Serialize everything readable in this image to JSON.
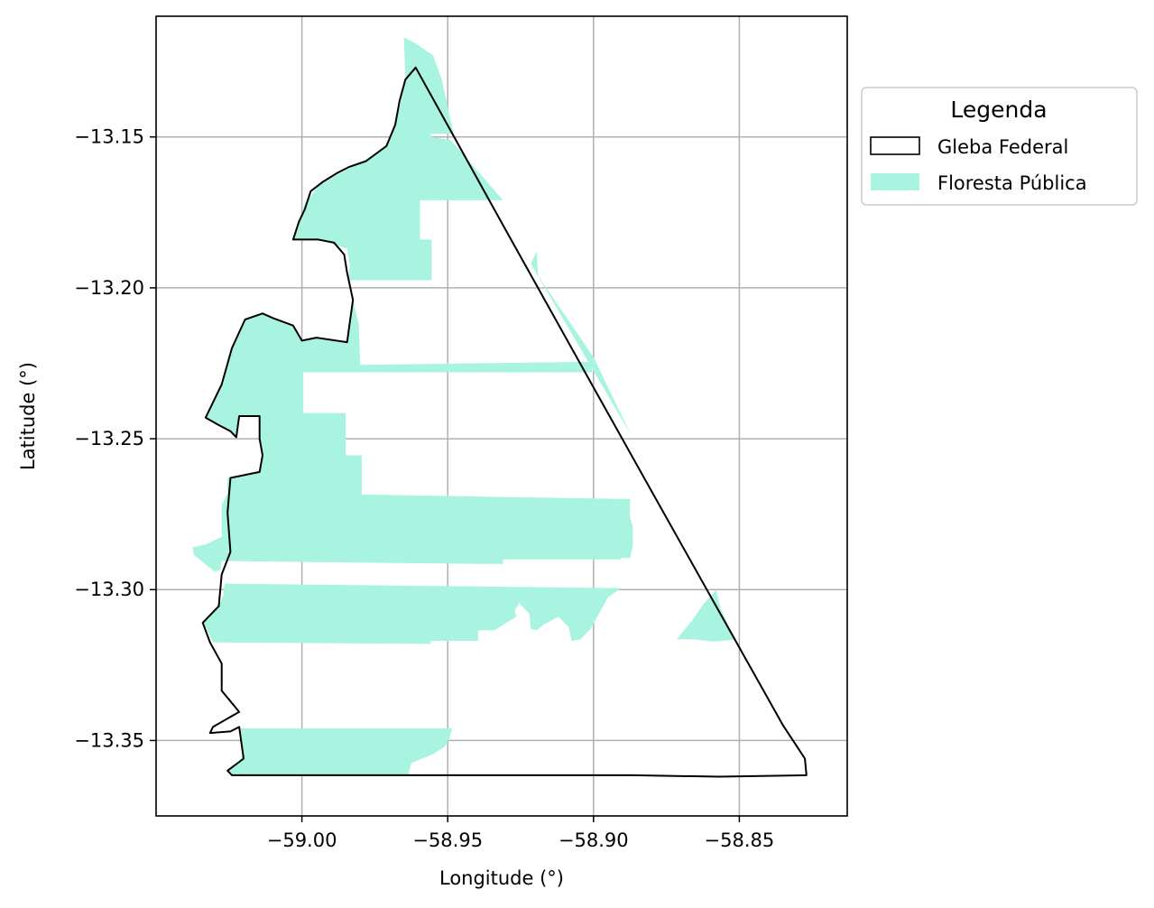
{
  "chart_data": {
    "type": "map",
    "xlabel": "Longitude (°)",
    "ylabel": "Latitude (°)",
    "xlim": [
      -59.05,
      -58.813
    ],
    "ylim": [
      -13.375,
      -13.11
    ],
    "x_ticks": [
      -59.0,
      -58.95,
      -58.9,
      -58.85
    ],
    "x_tick_labels": [
      "−59.00",
      "−58.95",
      "−58.90",
      "−58.85"
    ],
    "y_ticks": [
      -13.15,
      -13.2,
      -13.25,
      -13.3,
      -13.35
    ],
    "y_tick_labels": [
      "−13.15",
      "−13.20",
      "−13.25",
      "−13.30",
      "−13.35"
    ],
    "grid": true,
    "legend": {
      "title": "Legenda",
      "placement": "outside-upper-right",
      "entries": [
        {
          "label": "Gleba Federal",
          "style": "outline",
          "color": "#000000"
        },
        {
          "label": "Floresta Pública",
          "style": "fill",
          "color": "#a8f4e0"
        }
      ]
    },
    "colors": {
      "forest": "#a8f4e0",
      "outline": "#000000",
      "grid": "#b0b0b0"
    },
    "layers": [
      {
        "name": "Gleba Federal",
        "geometry": [
          [
            -58.961,
            -13.127
          ],
          [
            -58.9645,
            -13.131
          ],
          [
            -58.9665,
            -13.138
          ],
          [
            -58.968,
            -13.146
          ],
          [
            -58.971,
            -13.153
          ],
          [
            -58.978,
            -13.158
          ],
          [
            -58.984,
            -13.16
          ],
          [
            -58.988,
            -13.162
          ],
          [
            -58.993,
            -13.165
          ],
          [
            -58.997,
            -13.168
          ],
          [
            -58.999,
            -13.174
          ],
          [
            -59.001,
            -13.178
          ],
          [
            -59.003,
            -13.184
          ],
          [
            -58.9945,
            -13.184
          ],
          [
            -58.989,
            -13.185
          ],
          [
            -58.9855,
            -13.189
          ],
          [
            -58.9845,
            -13.195
          ],
          [
            -58.9825,
            -13.204
          ],
          [
            -58.9835,
            -13.211
          ],
          [
            -58.9845,
            -13.218
          ],
          [
            -58.995,
            -13.2165
          ],
          [
            -59.0,
            -13.2175
          ],
          [
            -59.003,
            -13.2125
          ],
          [
            -59.01,
            -13.21
          ],
          [
            -59.0135,
            -13.2085
          ],
          [
            -59.0195,
            -13.2105
          ],
          [
            -59.024,
            -13.22
          ],
          [
            -59.0275,
            -13.232
          ],
          [
            -59.033,
            -13.243
          ],
          [
            -59.0285,
            -13.2455
          ],
          [
            -59.0245,
            -13.2475
          ],
          [
            -59.0225,
            -13.2495
          ],
          [
            -59.0215,
            -13.2425
          ],
          [
            -59.0145,
            -13.2425
          ],
          [
            -59.0145,
            -13.25
          ],
          [
            -59.0135,
            -13.2555
          ],
          [
            -59.0145,
            -13.261
          ],
          [
            -59.0245,
            -13.263
          ],
          [
            -59.0255,
            -13.2745
          ],
          [
            -59.0245,
            -13.2875
          ],
          [
            -59.0275,
            -13.295
          ],
          [
            -59.0285,
            -13.3055
          ],
          [
            -59.034,
            -13.311
          ],
          [
            -59.0315,
            -13.3175
          ],
          [
            -59.0275,
            -13.3245
          ],
          [
            -59.0275,
            -13.3335
          ],
          [
            -59.0215,
            -13.3405
          ],
          [
            -59.0305,
            -13.3455
          ],
          [
            -59.0315,
            -13.3475
          ],
          [
            -59.0245,
            -13.347
          ],
          [
            -59.0215,
            -13.3455
          ],
          [
            -59.02,
            -13.356
          ],
          [
            -59.0255,
            -13.36
          ],
          [
            -59.024,
            -13.3615
          ],
          [
            -58.887,
            -13.3615
          ],
          [
            -58.857,
            -13.362
          ],
          [
            -58.827,
            -13.3615
          ],
          [
            -58.8275,
            -13.356
          ],
          [
            -58.835,
            -13.345
          ],
          [
            -58.878,
            -13.271
          ],
          [
            -58.9,
            -13.233
          ],
          [
            -58.93,
            -13.181
          ],
          [
            -58.961,
            -13.127
          ]
        ]
      },
      {
        "name": "Floresta Pública",
        "geometry": [
          [
            [
              -58.965,
              -13.117
            ],
            [
              -58.961,
              -13.119
            ],
            [
              -58.955,
              -13.123
            ],
            [
              -58.952,
              -13.131
            ],
            [
              -58.948,
              -13.149
            ],
            [
              -58.956,
              -13.149
            ],
            [
              -58.9555,
              -13.15
            ],
            [
              -58.949,
              -13.151
            ],
            [
              -58.931,
              -13.171
            ],
            [
              -58.9595,
              -13.171
            ],
            [
              -58.9595,
              -13.184
            ],
            [
              -58.9555,
              -13.184
            ],
            [
              -58.9555,
              -13.1975
            ],
            [
              -58.9845,
              -13.1975
            ],
            [
              -58.9835,
              -13.193
            ],
            [
              -58.9845,
              -13.187
            ],
            [
              -58.9945,
              -13.184
            ],
            [
              -59.003,
              -13.184
            ],
            [
              -59.001,
              -13.178
            ],
            [
              -58.999,
              -13.172
            ],
            [
              -58.994,
              -13.166
            ],
            [
              -58.987,
              -13.162
            ],
            [
              -58.979,
              -13.158
            ],
            [
              -58.971,
              -13.153
            ],
            [
              -58.968,
              -13.146
            ],
            [
              -58.966,
              -13.138
            ],
            [
              -58.9645,
              -13.131
            ],
            [
              -58.965,
              -13.117
            ]
          ],
          [
            [
              -58.9195,
              -13.188
            ],
            [
              -58.9215,
              -13.192
            ],
            [
              -58.887,
              -13.249
            ],
            [
              -58.9,
              -13.223
            ],
            [
              -58.919,
              -13.196
            ],
            [
              -58.9195,
              -13.188
            ]
          ],
          [
            [
              -59.0195,
              -13.2105
            ],
            [
              -59.0135,
              -13.2085
            ],
            [
              -59.01,
              -13.21
            ],
            [
              -59.003,
              -13.2125
            ],
            [
              -59.0,
              -13.2175
            ],
            [
              -58.995,
              -13.2165
            ],
            [
              -58.9845,
              -13.218
            ],
            [
              -58.9835,
              -13.211
            ],
            [
              -58.9825,
              -13.204
            ],
            [
              -58.982,
              -13.206
            ],
            [
              -58.9805,
              -13.212
            ],
            [
              -58.98,
              -13.2255
            ],
            [
              -58.9005,
              -13.2245
            ],
            [
              -58.9005,
              -13.228
            ],
            [
              -58.9995,
              -13.228
            ],
            [
              -58.9995,
              -13.2415
            ],
            [
              -58.985,
              -13.2415
            ],
            [
              -58.985,
              -13.2555
            ],
            [
              -58.9795,
              -13.2555
            ],
            [
              -58.9795,
              -13.2685
            ],
            [
              -58.8875,
              -13.27
            ],
            [
              -58.8875,
              -13.276
            ],
            [
              -58.8865,
              -13.279
            ],
            [
              -58.8865,
              -13.2855
            ],
            [
              -58.8875,
              -13.2895
            ],
            [
              -58.8905,
              -13.2895
            ],
            [
              -58.8905,
              -13.29
            ],
            [
              -58.931,
              -13.29
            ],
            [
              -58.931,
              -13.2915
            ],
            [
              -58.9395,
              -13.2915
            ],
            [
              -59.0275,
              -13.2905
            ],
            [
              -59.028,
              -13.2935
            ],
            [
              -59.03,
              -13.294
            ],
            [
              -59.037,
              -13.2885
            ],
            [
              -59.0375,
              -13.286
            ],
            [
              -59.033,
              -13.285
            ],
            [
              -59.0275,
              -13.2825
            ],
            [
              -59.0275,
              -13.272
            ],
            [
              -59.0255,
              -13.268
            ],
            [
              -59.0255,
              -13.263
            ],
            [
              -59.0145,
              -13.261
            ],
            [
              -59.0135,
              -13.2555
            ],
            [
              -59.0145,
              -13.25
            ],
            [
              -59.0145,
              -13.2425
            ],
            [
              -59.0215,
              -13.2425
            ],
            [
              -59.0225,
              -13.2495
            ],
            [
              -59.0245,
              -13.2475
            ],
            [
              -59.0285,
              -13.2455
            ],
            [
              -59.033,
              -13.243
            ],
            [
              -59.0275,
              -13.232
            ],
            [
              -59.024,
              -13.22
            ],
            [
              -59.0195,
              -13.2105
            ]
          ],
          [
            [
              -59.0265,
              -13.298
            ],
            [
              -58.8905,
              -13.2995
            ],
            [
              -58.895,
              -13.3025
            ],
            [
              -58.897,
              -13.306
            ],
            [
              -58.901,
              -13.313
            ],
            [
              -58.9045,
              -13.3165
            ],
            [
              -58.9075,
              -13.317
            ],
            [
              -58.9085,
              -13.3125
            ],
            [
              -58.912,
              -13.309
            ],
            [
              -58.917,
              -13.3115
            ],
            [
              -58.9195,
              -13.3135
            ],
            [
              -58.9215,
              -13.313
            ],
            [
              -58.922,
              -13.308
            ],
            [
              -58.9255,
              -13.3045
            ],
            [
              -58.927,
              -13.307
            ],
            [
              -58.9265,
              -13.309
            ],
            [
              -58.934,
              -13.3135
            ],
            [
              -58.9395,
              -13.3135
            ],
            [
              -58.9395,
              -13.317
            ],
            [
              -58.956,
              -13.317
            ],
            [
              -58.9555,
              -13.318
            ],
            [
              -59.0305,
              -13.3175
            ],
            [
              -59.0325,
              -13.3135
            ],
            [
              -59.034,
              -13.311
            ],
            [
              -59.0285,
              -13.3055
            ],
            [
              -59.027,
              -13.302
            ],
            [
              -59.0265,
              -13.298
            ]
          ],
          [
            [
              -58.858,
              -13.3
            ],
            [
              -58.8625,
              -13.305
            ],
            [
              -58.866,
              -13.31
            ],
            [
              -58.8715,
              -13.3165
            ],
            [
              -58.8655,
              -13.3165
            ],
            [
              -58.859,
              -13.3172
            ],
            [
              -58.8565,
              -13.317
            ],
            [
              -58.851,
              -13.3165
            ],
            [
              -58.8535,
              -13.3125
            ],
            [
              -58.8565,
              -13.306
            ],
            [
              -58.858,
              -13.3
            ]
          ],
          [
            [
              -59.021,
              -13.346
            ],
            [
              -58.9485,
              -13.346
            ],
            [
              -58.9495,
              -13.3495
            ],
            [
              -58.951,
              -13.352
            ],
            [
              -58.955,
              -13.3545
            ],
            [
              -58.9625,
              -13.3575
            ],
            [
              -58.9635,
              -13.3615
            ],
            [
              -59.024,
              -13.3615
            ],
            [
              -59.0255,
              -13.36
            ],
            [
              -59.0215,
              -13.357
            ],
            [
              -59.02,
              -13.354
            ],
            [
              -59.021,
              -13.346
            ]
          ]
        ]
      }
    ]
  }
}
